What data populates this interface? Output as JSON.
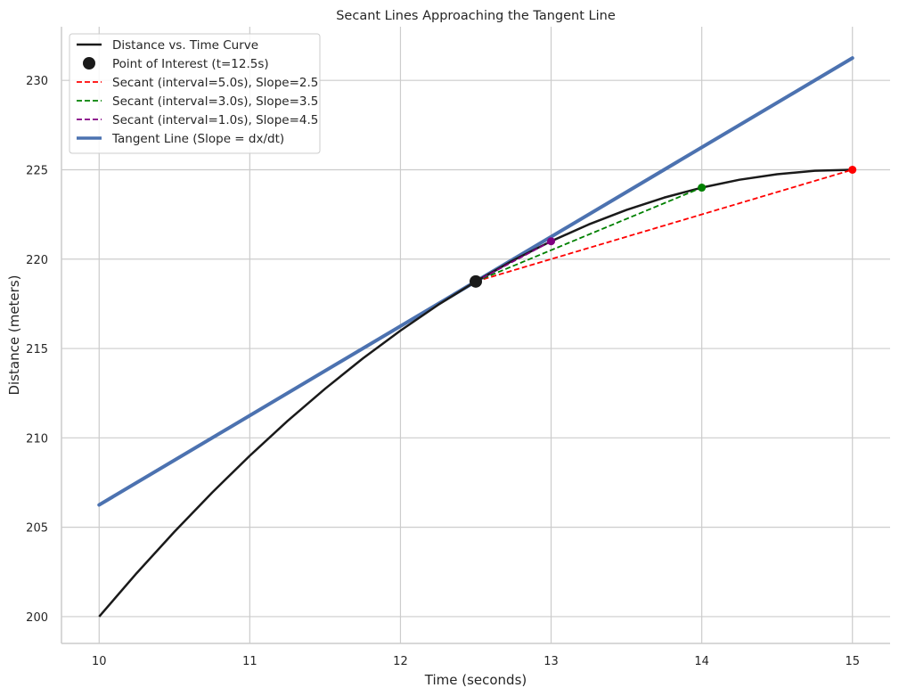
{
  "chart_data": {
    "type": "line",
    "title": "Secant Lines Approaching the Tangent Line",
    "xlabel": "Time (seconds)",
    "ylabel": "Distance (meters)",
    "xlim": [
      9.75,
      15.25
    ],
    "ylim": [
      198.5,
      233.0
    ],
    "xticks": [
      10,
      11,
      12,
      13,
      14,
      15
    ],
    "yticks": [
      200,
      205,
      210,
      215,
      220,
      225,
      230
    ],
    "grid": true,
    "legend_position": "upper-left",
    "curve": {
      "name": "Distance vs. Time Curve",
      "color": "#1a1a1a",
      "x": [
        10,
        10.25,
        10.5,
        10.75,
        11,
        11.25,
        11.5,
        11.75,
        12,
        12.25,
        12.5,
        12.75,
        13,
        13.25,
        13.5,
        13.75,
        14,
        14.25,
        14.5,
        14.75,
        15
      ],
      "y": [
        200.0,
        202.44,
        204.75,
        206.94,
        209.0,
        210.94,
        212.75,
        214.44,
        216.0,
        217.44,
        218.75,
        219.94,
        221.0,
        221.94,
        222.75,
        223.44,
        224.0,
        224.44,
        224.75,
        224.94,
        225.0
      ]
    },
    "point_of_interest": {
      "name": "Point of Interest (t=12.5s)",
      "x": 12.5,
      "y": 218.75,
      "color": "#1a1a1a"
    },
    "secants": [
      {
        "name": "Secant (interval=5.0s), Slope=2.5",
        "color": "#ff0000",
        "x": [
          12.5,
          15
        ],
        "y": [
          218.75,
          225.0
        ]
      },
      {
        "name": "Secant (interval=3.0s), Slope=3.5",
        "color": "#008000",
        "x": [
          12.5,
          14
        ],
        "y": [
          218.75,
          224.0
        ]
      },
      {
        "name": "Secant (interval=1.0s), Slope=4.5",
        "color": "#800080",
        "x": [
          12.5,
          13
        ],
        "y": [
          218.75,
          221.0
        ]
      }
    ],
    "tangent": {
      "name": "Tangent Line (Slope = dx/dt)",
      "color": "#4c72b0",
      "x": [
        10,
        15
      ],
      "y": [
        206.25,
        231.25
      ]
    }
  }
}
